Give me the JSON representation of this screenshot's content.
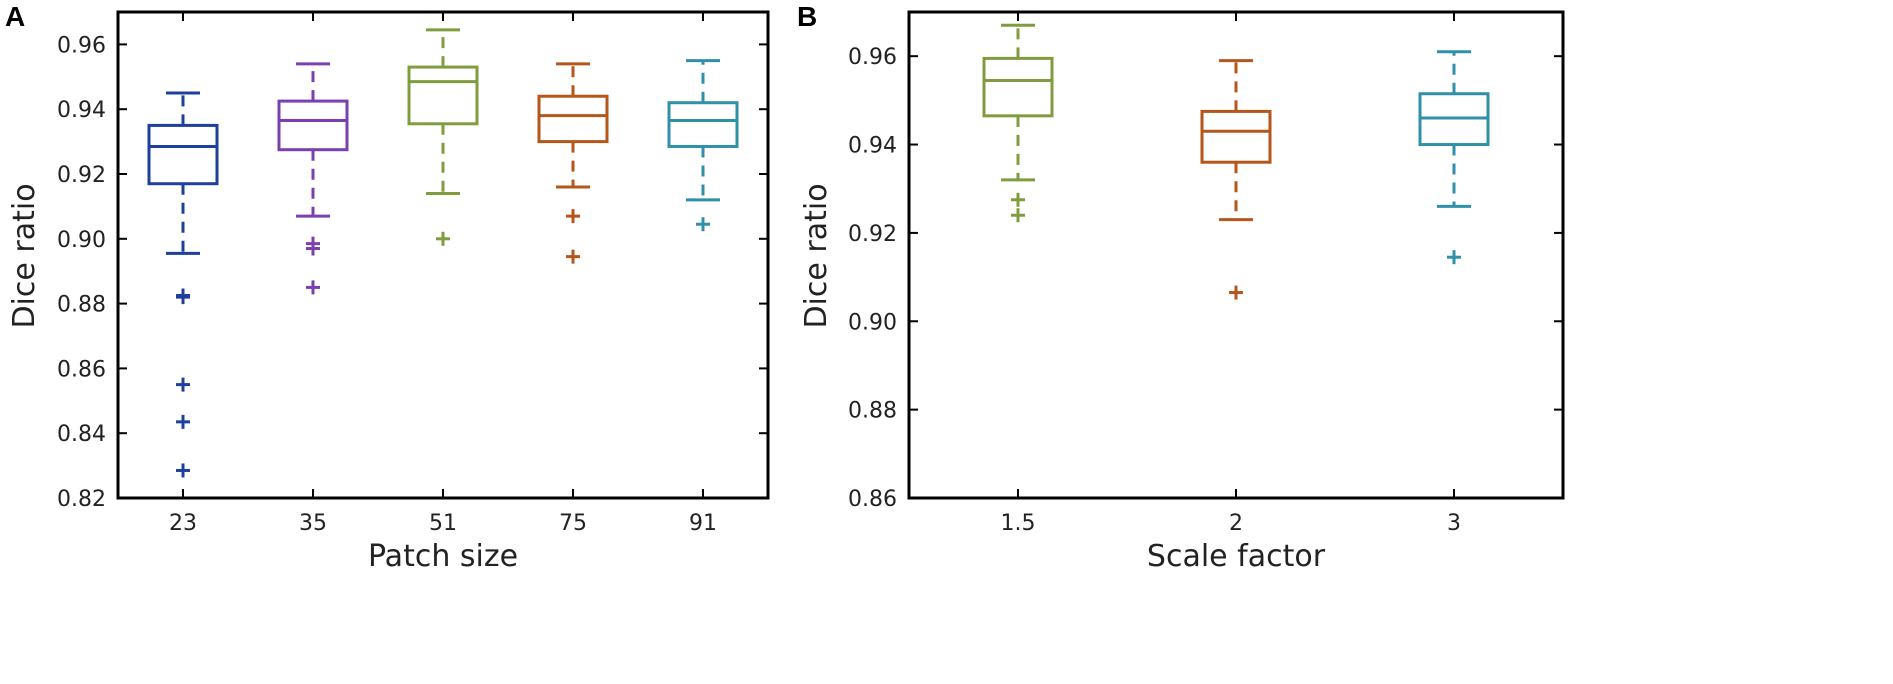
{
  "figure": {
    "panel_letters": [
      "A",
      "B"
    ]
  },
  "chart_data": [
    {
      "type": "box",
      "panel": "A",
      "xlabel": "Patch size",
      "ylabel": "Dice ratio",
      "ylim": [
        0.82,
        0.97
      ],
      "yticks": [
        0.82,
        0.84,
        0.86,
        0.88,
        0.9,
        0.92,
        0.94,
        0.96
      ],
      "ytick_labels": [
        "0.82",
        "0.84",
        "0.86",
        "0.88",
        "0.90",
        "0.92",
        "0.94",
        "0.96"
      ],
      "categories": [
        "23",
        "35",
        "51",
        "75",
        "91"
      ],
      "series": [
        {
          "name": "23",
          "color": "#1f3f9c",
          "whisker_low": 0.8955,
          "q1": 0.917,
          "median": 0.9285,
          "q3": 0.935,
          "whisker_high": 0.945,
          "outliers": [
            0.882,
            0.8825,
            0.855,
            0.8435,
            0.8285
          ]
        },
        {
          "name": "35",
          "color": "#7b3fb0",
          "whisker_low": 0.907,
          "q1": 0.9275,
          "median": 0.9365,
          "q3": 0.9425,
          "whisker_high": 0.954,
          "outliers": [
            0.8985,
            0.897,
            0.885
          ]
        },
        {
          "name": "51",
          "color": "#7f9c3e",
          "whisker_low": 0.914,
          "q1": 0.9355,
          "median": 0.9485,
          "q3": 0.953,
          "whisker_high": 0.9645,
          "outliers": [
            0.9
          ]
        },
        {
          "name": "75",
          "color": "#b5561a",
          "whisker_low": 0.916,
          "q1": 0.93,
          "median": 0.938,
          "q3": 0.944,
          "whisker_high": 0.954,
          "outliers": [
            0.907,
            0.8945
          ]
        },
        {
          "name": "91",
          "color": "#2f90a8",
          "whisker_low": 0.912,
          "q1": 0.9285,
          "median": 0.9365,
          "q3": 0.942,
          "whisker_high": 0.955,
          "outliers": [
            0.9045
          ]
        }
      ]
    },
    {
      "type": "box",
      "panel": "B",
      "xlabel": "Scale factor",
      "ylabel": "Dice ratio",
      "ylim": [
        0.86,
        0.97
      ],
      "yticks": [
        0.86,
        0.88,
        0.9,
        0.92,
        0.94,
        0.96
      ],
      "ytick_labels": [
        "0.86",
        "0.88",
        "0.90",
        "0.92",
        "0.94",
        "0.96"
      ],
      "categories": [
        "1.5",
        "2",
        "3"
      ],
      "series": [
        {
          "name": "1.5",
          "color": "#7f9c3e",
          "whisker_low": 0.932,
          "q1": 0.9465,
          "median": 0.9545,
          "q3": 0.9595,
          "whisker_high": 0.967,
          "outliers": [
            0.9275,
            0.924
          ]
        },
        {
          "name": "2",
          "color": "#b5561a",
          "whisker_low": 0.923,
          "q1": 0.936,
          "median": 0.943,
          "q3": 0.9475,
          "whisker_high": 0.959,
          "outliers": [
            0.9065
          ]
        },
        {
          "name": "3",
          "color": "#2f90a8",
          "whisker_low": 0.926,
          "q1": 0.94,
          "median": 0.946,
          "q3": 0.9515,
          "whisker_high": 0.961,
          "outliers": [
            0.9145
          ]
        }
      ]
    }
  ]
}
